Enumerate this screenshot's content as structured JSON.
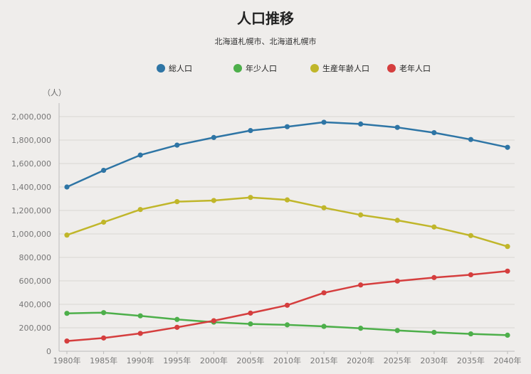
{
  "chart_data": {
    "type": "line",
    "title": "人口推移",
    "subtitle": "北海道札幌市、北海道札幌市",
    "y_unit": "（人）",
    "ylim": [
      0,
      2000000
    ],
    "y_ticks": [
      0,
      200000,
      400000,
      600000,
      800000,
      1000000,
      1200000,
      1400000,
      1600000,
      1800000,
      2000000
    ],
    "y_tick_labels": [
      "0",
      "200,000",
      "400,000",
      "600,000",
      "800,000",
      "1,000,000",
      "1,200,000",
      "1,400,000",
      "1,600,000",
      "1,800,000",
      "2,000,000"
    ],
    "categories": [
      "1980年",
      "1985年",
      "1990年",
      "1995年",
      "2000年",
      "2005年",
      "2010年",
      "2015年",
      "2020年",
      "2025年",
      "2030年",
      "2035年",
      "2040年"
    ],
    "legend_position": "top-center",
    "grid": "horizontal",
    "series": [
      {
        "name": "総人口",
        "color": "#2e75a5",
        "values": [
          1400000,
          1542000,
          1672000,
          1757000,
          1822000,
          1881000,
          1914000,
          1952000,
          1937000,
          1908000,
          1863000,
          1805000,
          1738000
        ]
      },
      {
        "name": "年少人口",
        "color": "#4daf4a",
        "values": [
          323000,
          329000,
          302000,
          271000,
          248000,
          233000,
          225000,
          212000,
          196000,
          177000,
          161000,
          148000,
          137000
        ]
      },
      {
        "name": "生産年齢人口",
        "color": "#c0b62a",
        "values": [
          990000,
          1100000,
          1208000,
          1275000,
          1285000,
          1311000,
          1290000,
          1223000,
          1162000,
          1116000,
          1059000,
          986000,
          893000
        ]
      },
      {
        "name": "老年人口",
        "color": "#d53e3e",
        "values": [
          87000,
          113000,
          152000,
          204000,
          260000,
          325000,
          392000,
          498000,
          565000,
          598000,
          628000,
          652000,
          683000
        ]
      }
    ]
  }
}
